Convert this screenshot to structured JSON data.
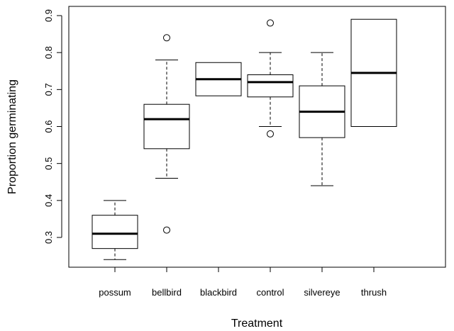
{
  "chart_data": {
    "type": "boxplot",
    "title": "",
    "xlabel": "Treatment",
    "ylabel": "Proportion germinating",
    "ylim": [
      0.22,
      0.92
    ],
    "yticks": [
      0.3,
      0.4,
      0.5,
      0.6,
      0.7,
      0.8,
      0.9
    ],
    "ytick_labels": [
      "0.3",
      "0.4",
      "0.5",
      "0.6",
      "0.7",
      "0.8",
      "0.9"
    ],
    "categories": [
      "possum",
      "bellbird",
      "blackbird",
      "control",
      "silvereye",
      "thrush"
    ],
    "boxes": [
      {
        "category": "possum",
        "whisker_low": 0.24,
        "q1": 0.27,
        "median": 0.31,
        "q3": 0.36,
        "whisker_high": 0.4,
        "outliers": []
      },
      {
        "category": "bellbird",
        "whisker_low": 0.46,
        "q1": 0.54,
        "median": 0.62,
        "q3": 0.66,
        "whisker_high": 0.78,
        "outliers": [
          0.84,
          0.32
        ]
      },
      {
        "category": "blackbird",
        "whisker_low": 0.683,
        "q1": 0.683,
        "median": 0.728,
        "q3": 0.773,
        "whisker_high": 0.773,
        "outliers": []
      },
      {
        "category": "control",
        "whisker_low": 0.6,
        "q1": 0.68,
        "median": 0.72,
        "q3": 0.74,
        "whisker_high": 0.8,
        "outliers": [
          0.88,
          0.58
        ]
      },
      {
        "category": "silvereye",
        "whisker_low": 0.44,
        "q1": 0.57,
        "median": 0.64,
        "q3": 0.71,
        "whisker_high": 0.8,
        "outliers": []
      },
      {
        "category": "thrush",
        "whisker_low": 0.6,
        "q1": 0.6,
        "median": 0.745,
        "q3": 0.89,
        "whisker_high": 0.89,
        "outliers": []
      }
    ],
    "grid": false,
    "legend": "none",
    "colors": {
      "box_fill": "#ffffff",
      "stroke": "#000000"
    }
  }
}
